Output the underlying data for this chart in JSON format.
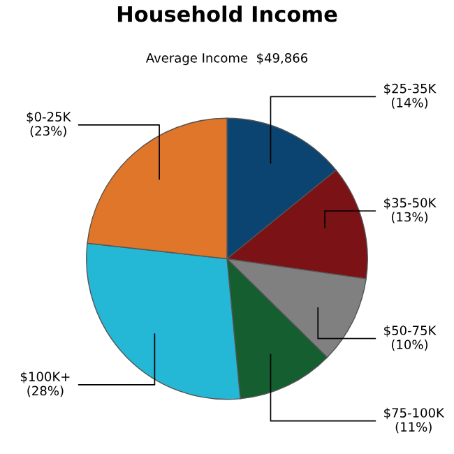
{
  "chart_data": {
    "type": "pie",
    "title": "Household Income",
    "subtitle": "Average Income  $49,866",
    "categories": [
      "$25-35K",
      "$35-50K",
      "$50-75K",
      "$75-100K",
      "$100K+",
      "$0-25K"
    ],
    "values": [
      14,
      13,
      10,
      11,
      28,
      23
    ],
    "value_labels": [
      "(14%)",
      "(13%)",
      "(10%)",
      "(11%)",
      "(28%)",
      "(23%)"
    ],
    "colors": [
      "#0b4470",
      "#7a1216",
      "#808080",
      "#155e30",
      "#24b8d6",
      "#e0762a"
    ]
  }
}
